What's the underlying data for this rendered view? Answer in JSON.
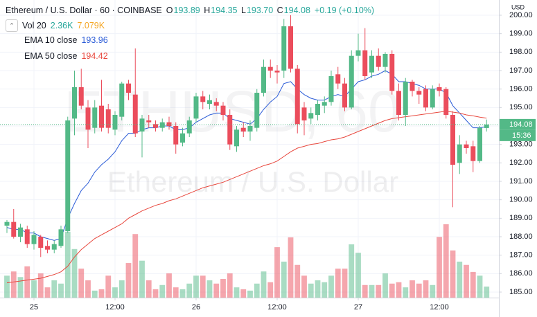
{
  "chart_data": {
    "type": "candlestick",
    "header": {
      "title": "Ethereum / U.S. Dollar · 60 · COINBASE",
      "o": "O",
      "h": "H",
      "l": "L",
      "c": "C",
      "ohlc_labels": [
        "193.89",
        "194.35",
        "193.70",
        "194.08"
      ],
      "change": "+0.19 (+0.10%)"
    },
    "watermark": [
      "ETHUSD, 60",
      "Ethereum / U.S. Dollar"
    ],
    "currency": "USD",
    "countdown": "15:36",
    "categories": [
      null,
      null,
      null,
      null,
      "25",
      null,
      null,
      null,
      null,
      null,
      null,
      null,
      null,
      null,
      null,
      null,
      "12:00",
      null,
      null,
      null,
      null,
      null,
      null,
      null,
      null,
      null,
      null,
      null,
      "26",
      null,
      null,
      null,
      null,
      null,
      null,
      null,
      null,
      null,
      null,
      null,
      "12:00",
      null,
      null,
      null,
      null,
      null,
      null,
      null,
      null,
      null,
      null,
      null,
      "27",
      null,
      null,
      null,
      null,
      null,
      null,
      null,
      null,
      null,
      null,
      null,
      "12:00",
      null,
      null,
      null,
      null,
      null,
      null,
      null
    ],
    "open": [
      188.6,
      188.8,
      188.0,
      188.4,
      187.6,
      188.0,
      187.5,
      187.3,
      187.5,
      188.3,
      194.4,
      196.1,
      195.0,
      193.9,
      195.1,
      194.9,
      193.8,
      194.5,
      196.3,
      195.7,
      193.7,
      194.3,
      194.1,
      193.9,
      194.2,
      194.0,
      193.1,
      193.6,
      194.4,
      195.6,
      195.2,
      195.3,
      195.1,
      194.6,
      192.9,
      193.9,
      193.7,
      193.9,
      195.8,
      197.2,
      197.0,
      197.0,
      199.4,
      197.1,
      195.0,
      194.4,
      194.6,
      195.1,
      195.3,
      196.8,
      196.3,
      195.0,
      197.8,
      198.1,
      196.9,
      197.8,
      197.2,
      197.9,
      195.9,
      194.6,
      196.4,
      195.9,
      196.0,
      195.0,
      196.1,
      196.0,
      194.6,
      192.0,
      193.0,
      192.9,
      192.1,
      193.89
    ],
    "high": [
      188.9,
      189.5,
      188.7,
      188.6,
      188.3,
      188.1,
      187.8,
      187.8,
      188.6,
      194.5,
      197.0,
      197.1,
      195.4,
      195.4,
      196.5,
      195.2,
      194.8,
      196.4,
      196.5,
      198.2,
      194.6,
      194.6,
      194.3,
      194.4,
      194.5,
      194.2,
      193.9,
      194.5,
      195.8,
      195.9,
      195.7,
      195.5,
      195.3,
      194.9,
      194.0,
      194.2,
      194.3,
      196.0,
      197.6,
      197.6,
      197.3,
      199.8,
      200.0,
      197.3,
      195.3,
      195.0,
      195.4,
      195.6,
      197.0,
      197.2,
      196.6,
      198.1,
      199.0,
      199.3,
      198.1,
      198.2,
      198.0,
      198.1,
      196.3,
      196.6,
      196.5,
      196.1,
      196.2,
      196.2,
      196.3,
      196.1,
      194.8,
      193.5,
      193.2,
      193.2,
      194.0,
      194.35
    ],
    "low": [
      188.2,
      187.9,
      187.7,
      187.4,
      187.3,
      186.9,
      187.1,
      187.1,
      187.4,
      188.2,
      193.5,
      194.9,
      192.8,
      193.6,
      193.7,
      193.6,
      193.5,
      194.3,
      195.4,
      193.4,
      192.3,
      193.9,
      193.7,
      193.7,
      193.8,
      192.5,
      192.9,
      193.4,
      194.2,
      194.9,
      194.9,
      194.8,
      194.3,
      192.7,
      192.6,
      193.4,
      193.2,
      193.7,
      195.6,
      196.6,
      196.3,
      196.6,
      196.9,
      193.6,
      193.5,
      194.1,
      194.3,
      194.7,
      195.1,
      196.0,
      194.8,
      194.9,
      197.5,
      196.5,
      196.6,
      197.0,
      196.9,
      195.7,
      194.3,
      194.0,
      195.6,
      195.2,
      194.8,
      194.9,
      195.6,
      194.4,
      189.6,
      191.4,
      192.5,
      191.5,
      192.0,
      193.7
    ],
    "close": [
      188.8,
      188.0,
      188.5,
      187.6,
      188.1,
      187.4,
      187.3,
      187.6,
      188.4,
      194.3,
      196.1,
      195.1,
      193.8,
      195.0,
      193.9,
      193.9,
      194.6,
      196.3,
      195.8,
      193.6,
      194.4,
      194.2,
      193.9,
      194.2,
      194.0,
      193.0,
      193.6,
      194.3,
      195.6,
      195.3,
      195.4,
      195.1,
      194.6,
      193.0,
      193.8,
      193.7,
      194.0,
      195.8,
      197.2,
      197.0,
      196.9,
      199.4,
      197.1,
      194.1,
      194.3,
      194.7,
      195.2,
      195.3,
      196.7,
      196.3,
      195.0,
      197.8,
      198.1,
      196.7,
      197.8,
      197.2,
      197.9,
      195.9,
      194.6,
      196.4,
      195.9,
      195.7,
      195.0,
      196.0,
      195.9,
      194.6,
      191.9,
      193.0,
      192.8,
      192.1,
      193.9,
      194.08
    ],
    "up_color": "#53b987",
    "down_color": "#eb4d5c",
    "volume": {
      "name": "Vol 20",
      "axis": "y2",
      "value_label": "2.36K",
      "ma_label": "7.079K",
      "ma_color": "#f5a623",
      "value_color": "#26a69a",
      "values": [
        4.7,
        5.6,
        4.4,
        6.7,
        3.7,
        5.2,
        2.2,
        3.7,
        3.0,
        14.1,
        10.4,
        6.2,
        3.7,
        1.5,
        1.8,
        4.7,
        2.2,
        3.7,
        7.4,
        13.6,
        7.9,
        3.7,
        1.8,
        2.7,
        5.2,
        2.2,
        1.8,
        3.0,
        4.7,
        4.7,
        3.7,
        3.0,
        4.0,
        5.2,
        2.2,
        1.8,
        1.5,
        3.0,
        5.6,
        3.3,
        10.8,
        7.7,
        12.9,
        7.0,
        4.7,
        3.0,
        3.7,
        3.3,
        4.7,
        6.2,
        6.2,
        11.4,
        9.6,
        2.7,
        2.7,
        2.7,
        5.2,
        3.0,
        3.3,
        2.2,
        3.7,
        3.0,
        3.7,
        2.7,
        13.0,
        15.7,
        10.1,
        7.7,
        7.0,
        5.5,
        4.7,
        2.36
      ]
    },
    "series": [
      {
        "name": "EMA 10 close",
        "color": "#2a5bd7",
        "values": [
          188.5,
          188.4,
          188.4,
          188.2,
          188.2,
          188.0,
          187.9,
          187.8,
          187.9,
          189.0,
          189.8,
          190.5,
          190.9,
          191.5,
          191.9,
          192.2,
          192.6,
          193.2,
          193.6,
          193.6,
          193.8,
          193.9,
          193.9,
          194.0,
          194.0,
          193.8,
          193.8,
          193.9,
          194.2,
          194.4,
          194.6,
          194.7,
          194.7,
          194.4,
          194.3,
          194.2,
          194.1,
          194.4,
          194.9,
          195.3,
          195.6,
          196.3,
          196.4,
          196.0,
          195.7,
          195.5,
          195.4,
          195.4,
          195.6,
          195.7,
          195.6,
          196.0,
          196.4,
          196.5,
          196.7,
          196.8,
          197.0,
          196.8,
          196.4,
          196.4,
          196.3,
          196.2,
          196.0,
          196.0,
          196.0,
          195.8,
          195.1,
          194.7,
          194.3,
          193.9,
          193.9,
          193.96
        ]
      },
      {
        "name": "EMA 50 close",
        "color": "#e8473d",
        "values": [
          185.5,
          185.55,
          185.6,
          185.65,
          185.7,
          185.75,
          185.85,
          185.95,
          186.1,
          186.4,
          186.9,
          187.3,
          187.6,
          187.9,
          188.1,
          188.3,
          188.5,
          188.7,
          189.0,
          189.2,
          189.4,
          189.55,
          189.7,
          189.8,
          189.95,
          190.05,
          190.2,
          190.35,
          190.5,
          190.65,
          190.75,
          190.85,
          190.95,
          191.1,
          191.25,
          191.4,
          191.55,
          191.7,
          191.85,
          191.95,
          192.1,
          192.35,
          192.6,
          192.8,
          192.9,
          193.0,
          193.05,
          193.15,
          193.25,
          193.3,
          193.4,
          193.55,
          193.7,
          193.85,
          194.0,
          194.15,
          194.3,
          194.4,
          194.45,
          194.5,
          194.55,
          194.6,
          194.65,
          194.7,
          194.75,
          194.8,
          194.75,
          194.7,
          194.6,
          194.55,
          194.48,
          194.42
        ]
      }
    ],
    "ylim": [
      184.7,
      200.825
    ],
    "yticks": [
      {
        "value": 185,
        "label": "185.00"
      },
      {
        "value": 186,
        "label": "186.00"
      },
      {
        "value": 187,
        "label": "187.00"
      },
      {
        "value": 188,
        "label": "188.00"
      },
      {
        "value": 189,
        "label": "189.00"
      },
      {
        "value": 190,
        "label": "190.00"
      },
      {
        "value": 191,
        "label": "191.00"
      },
      {
        "value": 192,
        "label": "192.00"
      },
      {
        "value": 193,
        "label": "193.00"
      },
      {
        "value": 194,
        "label": "194.00"
      },
      {
        "value": 195,
        "label": "195.00"
      },
      {
        "value": 196,
        "label": "196.00"
      },
      {
        "value": 197,
        "label": "197.00"
      },
      {
        "value": 198,
        "label": "198.00"
      },
      {
        "value": 199,
        "label": "199.00"
      },
      {
        "value": 200,
        "label": "200.00"
      }
    ],
    "y2lim": [
      0,
      63.7
    ],
    "grid": true
  }
}
